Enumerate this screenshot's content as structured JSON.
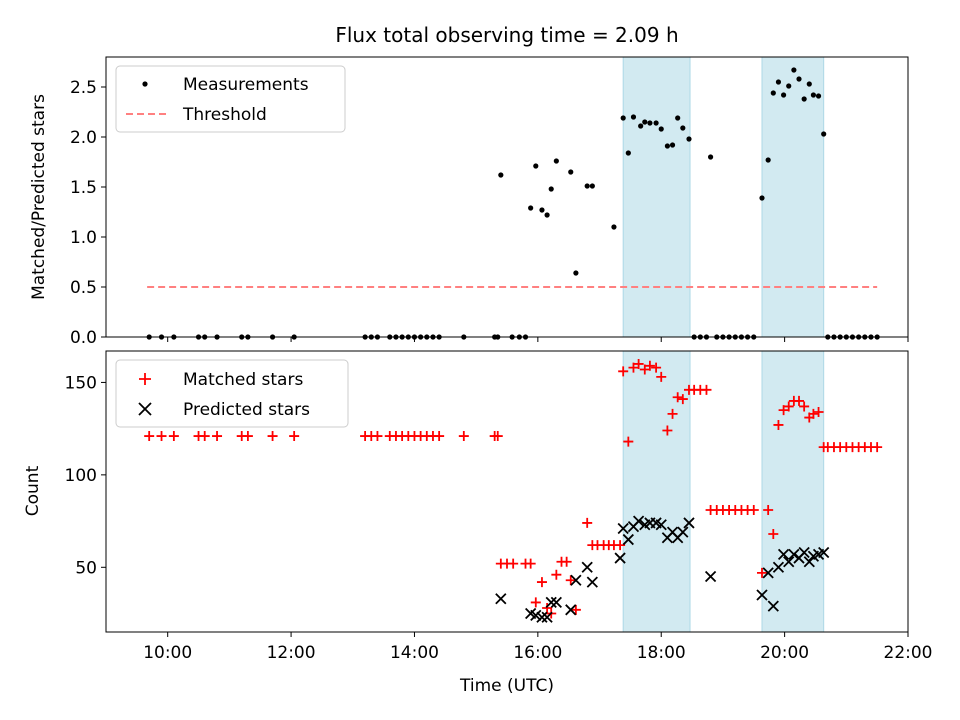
{
  "chart_data": {
    "type": "scatter",
    "title": "Flux total observing time = 2.09 h",
    "xlabel": "Time (UTC)",
    "xlim": [
      "09:00",
      "22:00"
    ],
    "x_tick_labels": [
      "10:00",
      "12:00",
      "14:00",
      "16:00",
      "18:00",
      "20:00",
      "22:00"
    ],
    "highlight_intervals": [
      [
        "17:23",
        "18:28"
      ],
      [
        "19:38",
        "20:38"
      ]
    ],
    "highlight_color": "#add8e6",
    "panels": [
      {
        "ylabel": "Matched/Predicted stars",
        "ylim": [
          0,
          2.8
        ],
        "y_tick_labels": [
          "0.0",
          "0.5",
          "1.0",
          "1.5",
          "2.0",
          "2.5"
        ],
        "legend_position": "top-left",
        "threshold": {
          "name": "Threshold",
          "value": 0.5,
          "x_range": [
            "09:40",
            "21:30"
          ],
          "color": "#ff8080",
          "style": "dashed"
        },
        "series": [
          {
            "name": "Measurements",
            "marker": "dot",
            "color": "#000000",
            "points": [
              [
                "09:42",
                0
              ],
              [
                "09:54",
                0
              ],
              [
                "10:06",
                0
              ],
              [
                "10:30",
                0
              ],
              [
                "10:36",
                0
              ],
              [
                "10:48",
                0
              ],
              [
                "11:12",
                0
              ],
              [
                "11:18",
                0
              ],
              [
                "11:42",
                0
              ],
              [
                "12:03",
                0
              ],
              [
                "13:12",
                0
              ],
              [
                "13:18",
                0
              ],
              [
                "13:24",
                0
              ],
              [
                "13:36",
                0
              ],
              [
                "13:42",
                0
              ],
              [
                "13:48",
                0
              ],
              [
                "13:54",
                0
              ],
              [
                "14:00",
                0
              ],
              [
                "14:06",
                0
              ],
              [
                "14:12",
                0
              ],
              [
                "14:18",
                0
              ],
              [
                "14:24",
                0
              ],
              [
                "14:48",
                0
              ],
              [
                "15:18",
                0
              ],
              [
                "15:21",
                0
              ],
              [
                "15:24",
                1.62
              ],
              [
                "15:35",
                0
              ],
              [
                "15:42",
                0
              ],
              [
                "15:48",
                0
              ],
              [
                "15:53",
                1.29
              ],
              [
                "15:58",
                1.71
              ],
              [
                "16:04",
                1.27
              ],
              [
                "16:09",
                1.22
              ],
              [
                "16:13",
                1.48
              ],
              [
                "16:18",
                1.76
              ],
              [
                "16:32",
                1.65
              ],
              [
                "16:37",
                0.64
              ],
              [
                "16:48",
                1.51
              ],
              [
                "16:53",
                1.51
              ],
              [
                "17:14",
                1.1
              ],
              [
                "17:23",
                2.19
              ],
              [
                "17:28",
                1.84
              ],
              [
                "17:33",
                2.2
              ],
              [
                "17:40",
                2.11
              ],
              [
                "17:44",
                2.15
              ],
              [
                "17:49",
                2.14
              ],
              [
                "17:55",
                2.14
              ],
              [
                "18:00",
                2.08
              ],
              [
                "18:06",
                1.91
              ],
              [
                "18:11",
                1.92
              ],
              [
                "18:16",
                2.19
              ],
              [
                "18:21",
                2.09
              ],
              [
                "18:27",
                1.98
              ],
              [
                "18:32",
                0
              ],
              [
                "18:38",
                0
              ],
              [
                "18:44",
                0
              ],
              [
                "18:48",
                1.8
              ],
              [
                "18:54",
                0
              ],
              [
                "19:00",
                0
              ],
              [
                "19:06",
                0
              ],
              [
                "19:12",
                0
              ],
              [
                "19:18",
                0
              ],
              [
                "19:24",
                0
              ],
              [
                "19:30",
                0
              ],
              [
                "19:38",
                1.39
              ],
              [
                "19:44",
                1.77
              ],
              [
                "19:49",
                2.44
              ],
              [
                "19:54",
                2.55
              ],
              [
                "19:59",
                2.42
              ],
              [
                "20:04",
                2.51
              ],
              [
                "20:09",
                2.67
              ],
              [
                "20:14",
                2.58
              ],
              [
                "20:19",
                2.38
              ],
              [
                "20:24",
                2.53
              ],
              [
                "20:28",
                2.42
              ],
              [
                "20:33",
                2.41
              ],
              [
                "20:38",
                2.03
              ],
              [
                "20:42",
                0
              ],
              [
                "20:48",
                0
              ],
              [
                "20:54",
                0
              ],
              [
                "21:00",
                0
              ],
              [
                "21:06",
                0
              ],
              [
                "21:12",
                0
              ],
              [
                "21:18",
                0
              ],
              [
                "21:24",
                0
              ],
              [
                "21:30",
                0
              ]
            ]
          }
        ]
      },
      {
        "ylabel": "Count",
        "ylim": [
          15,
          167
        ],
        "y_tick_labels": [
          "50",
          "100",
          "150"
        ],
        "legend_position": "top-left",
        "series": [
          {
            "name": "Matched stars",
            "marker": "plus",
            "color": "#ff0000",
            "points": [
              [
                "09:42",
                121
              ],
              [
                "09:54",
                121
              ],
              [
                "10:06",
                121
              ],
              [
                "10:30",
                121
              ],
              [
                "10:36",
                121
              ],
              [
                "10:48",
                121
              ],
              [
                "11:12",
                121
              ],
              [
                "11:18",
                121
              ],
              [
                "11:42",
                121
              ],
              [
                "12:03",
                121
              ],
              [
                "13:12",
                121
              ],
              [
                "13:18",
                121
              ],
              [
                "13:24",
                121
              ],
              [
                "13:36",
                121
              ],
              [
                "13:42",
                121
              ],
              [
                "13:48",
                121
              ],
              [
                "13:54",
                121
              ],
              [
                "14:00",
                121
              ],
              [
                "14:06",
                121
              ],
              [
                "14:12",
                121
              ],
              [
                "14:18",
                121
              ],
              [
                "14:24",
                121
              ],
              [
                "14:48",
                121
              ],
              [
                "15:18",
                121
              ],
              [
                "15:21",
                121
              ],
              [
                "15:24",
                52
              ],
              [
                "15:30",
                52
              ],
              [
                "15:36",
                52
              ],
              [
                "15:48",
                52
              ],
              [
                "15:53",
                52
              ],
              [
                "15:58",
                31
              ],
              [
                "16:04",
                42
              ],
              [
                "16:09",
                28
              ],
              [
                "16:13",
                25
              ],
              [
                "16:18",
                46
              ],
              [
                "16:23",
                53
              ],
              [
                "16:28",
                53
              ],
              [
                "16:32",
                43
              ],
              [
                "16:37",
                27
              ],
              [
                "16:48",
                74
              ],
              [
                "16:53",
                62
              ],
              [
                "16:58",
                62
              ],
              [
                "17:04",
                62
              ],
              [
                "17:09",
                62
              ],
              [
                "17:14",
                62
              ],
              [
                "17:20",
                62
              ],
              [
                "17:23",
                156
              ],
              [
                "17:28",
                118
              ],
              [
                "17:33",
                158
              ],
              [
                "17:38",
                160
              ],
              [
                "17:44",
                157
              ],
              [
                "17:49",
                159
              ],
              [
                "17:55",
                158
              ],
              [
                "18:00",
                153
              ],
              [
                "18:06",
                124
              ],
              [
                "18:11",
                133
              ],
              [
                "18:16",
                142
              ],
              [
                "18:21",
                141
              ],
              [
                "18:27",
                146
              ],
              [
                "18:32",
                146
              ],
              [
                "18:38",
                146
              ],
              [
                "18:44",
                146
              ],
              [
                "18:48",
                81
              ],
              [
                "18:54",
                81
              ],
              [
                "19:00",
                81
              ],
              [
                "19:06",
                81
              ],
              [
                "19:12",
                81
              ],
              [
                "19:18",
                81
              ],
              [
                "19:24",
                81
              ],
              [
                "19:30",
                81
              ],
              [
                "19:38",
                47
              ],
              [
                "19:44",
                81
              ],
              [
                "19:49",
                68
              ],
              [
                "19:54",
                127
              ],
              [
                "19:59",
                135
              ],
              [
                "20:04",
                137
              ],
              [
                "20:09",
                140
              ],
              [
                "20:14",
                140
              ],
              [
                "20:19",
                137
              ],
              [
                "20:24",
                131
              ],
              [
                "20:28",
                133
              ],
              [
                "20:33",
                134
              ],
              [
                "20:38",
                115
              ],
              [
                "20:42",
                115
              ],
              [
                "20:48",
                115
              ],
              [
                "20:54",
                115
              ],
              [
                "21:00",
                115
              ],
              [
                "21:06",
                115
              ],
              [
                "21:12",
                115
              ],
              [
                "21:18",
                115
              ],
              [
                "21:24",
                115
              ],
              [
                "21:30",
                115
              ]
            ]
          },
          {
            "name": "Predicted stars",
            "marker": "x",
            "color": "#000000",
            "points": [
              [
                "15:24",
                33
              ],
              [
                "15:53",
                25
              ],
              [
                "15:58",
                24
              ],
              [
                "16:04",
                23
              ],
              [
                "16:09",
                23
              ],
              [
                "16:13",
                31
              ],
              [
                "16:18",
                31
              ],
              [
                "16:32",
                27
              ],
              [
                "16:37",
                43
              ],
              [
                "16:48",
                50
              ],
              [
                "16:53",
                42
              ],
              [
                "17:20",
                55
              ],
              [
                "17:23",
                71
              ],
              [
                "17:28",
                65
              ],
              [
                "17:33",
                72
              ],
              [
                "17:38",
                75
              ],
              [
                "17:44",
                73
              ],
              [
                "17:49",
                74
              ],
              [
                "17:55",
                74
              ],
              [
                "18:00",
                73
              ],
              [
                "18:06",
                66
              ],
              [
                "18:11",
                69
              ],
              [
                "18:16",
                66
              ],
              [
                "18:21",
                69
              ],
              [
                "18:27",
                74
              ],
              [
                "18:48",
                45
              ],
              [
                "19:38",
                35
              ],
              [
                "19:44",
                47
              ],
              [
                "19:49",
                29
              ],
              [
                "19:54",
                50
              ],
              [
                "19:59",
                57
              ],
              [
                "20:04",
                53
              ],
              [
                "20:09",
                57
              ],
              [
                "20:14",
                55
              ],
              [
                "20:19",
                58
              ],
              [
                "20:24",
                53
              ],
              [
                "20:28",
                56
              ],
              [
                "20:33",
                57
              ],
              [
                "20:38",
                58
              ]
            ]
          }
        ]
      }
    ]
  }
}
